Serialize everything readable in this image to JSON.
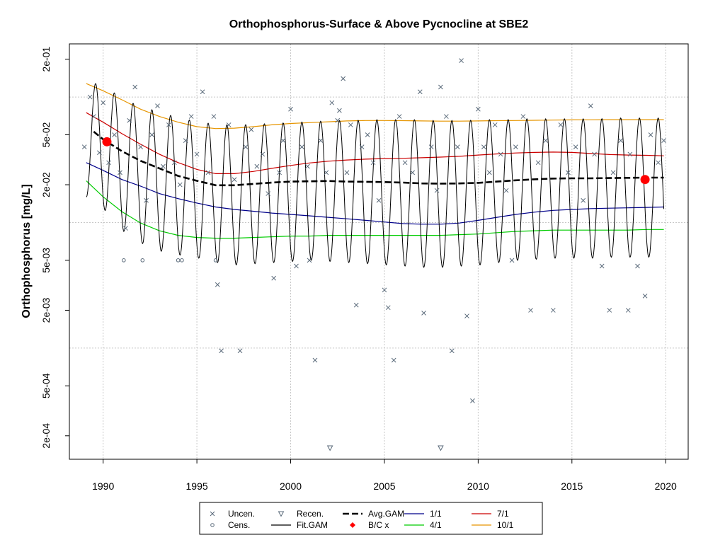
{
  "chart_data": {
    "type": "line",
    "title": "Orthophosphorus-Surface & Above Pycnocline at SBE2",
    "xlabel": "",
    "ylabel": "Orthophosphorus [mg/L]",
    "y_scale": "log",
    "xlim": [
      1988.2,
      2021.2
    ],
    "ylim": [
      0.00013,
      0.265
    ],
    "x_ticks": [
      1990,
      1995,
      2000,
      2005,
      2010,
      2015,
      2020
    ],
    "x_tick_labels": [
      "1990",
      "1995",
      "2000",
      "2005",
      "2010",
      "2015",
      "2020"
    ],
    "y_ticks": [
      0.0002,
      0.0005,
      0.002,
      0.005,
      0.02,
      0.05,
      0.2
    ],
    "y_tick_labels": [
      "2e-04",
      "5e-04",
      "2e-03",
      "5e-03",
      "2e-02",
      "5e-02",
      "2e-01"
    ],
    "grid_y": [
      0.001,
      0.01,
      0.1
    ],
    "grid_x": [
      1990,
      1995,
      2000,
      2005,
      2010,
      2015,
      2020
    ],
    "grid": true,
    "legend_position": "bottom",
    "legend": [
      {
        "label": "Uncen.",
        "symbol": "x-mark",
        "color": "#5a6a7a"
      },
      {
        "label": "Recen.",
        "symbol": "down-triangle",
        "color": "#5a6a7a"
      },
      {
        "label": "Avg.GAM",
        "symbol": "dashed-line",
        "color": "#000000"
      },
      {
        "label": "1/1",
        "symbol": "line",
        "color": "#00008b"
      },
      {
        "label": "7/1",
        "symbol": "line",
        "color": "#cc0000"
      },
      {
        "label": "Cens.",
        "symbol": "open-circle",
        "color": "#5a6a7a"
      },
      {
        "label": "Fit.GAM",
        "symbol": "line",
        "color": "#000000"
      },
      {
        "label": "B/C x",
        "symbol": "diamond",
        "color": "#ff0000"
      },
      {
        "label": "4/1",
        "symbol": "line",
        "color": "#00cc00"
      },
      {
        "label": "10/1",
        "symbol": "line",
        "color": "#e69500"
      }
    ],
    "series": [
      {
        "name": "1/1",
        "color": "#00008b",
        "style": "line",
        "x": [
          1989.1,
          1990,
          1991,
          1992,
          1993,
          1994,
          1995,
          1996,
          1997,
          1998,
          1999,
          2000,
          2001,
          2002,
          2003,
          2004,
          2005,
          2006,
          2007,
          2008,
          2009,
          2010,
          2011,
          2012,
          2013,
          2014,
          2015,
          2016,
          2017,
          2018,
          2019,
          2019.9
        ],
        "y": [
          0.03,
          0.026,
          0.022,
          0.0195,
          0.017,
          0.0155,
          0.0143,
          0.0133,
          0.0127,
          0.0123,
          0.0119,
          0.0116,
          0.0113,
          0.011,
          0.0107,
          0.0104,
          0.0101,
          0.0098,
          0.0097,
          0.0097,
          0.0099,
          0.0104,
          0.011,
          0.0116,
          0.0121,
          0.0125,
          0.0127,
          0.0129,
          0.013,
          0.0131,
          0.0132,
          0.0133
        ]
      },
      {
        "name": "4/1",
        "color": "#00cc00",
        "style": "line",
        "x": [
          1989.1,
          1990,
          1991,
          1992,
          1993,
          1994,
          1995,
          1996,
          1997,
          1998,
          1999,
          2000,
          2001,
          2002,
          2003,
          2004,
          2005,
          2006,
          2007,
          2008,
          2009,
          2010,
          2011,
          2012,
          2013,
          2014,
          2015,
          2016,
          2017,
          2018,
          2019,
          2019.9
        ],
        "y": [
          0.0215,
          0.016,
          0.0122,
          0.0099,
          0.0086,
          0.0079,
          0.0076,
          0.0075,
          0.0075,
          0.0076,
          0.0077,
          0.0078,
          0.0078,
          0.0079,
          0.0079,
          0.0079,
          0.0079,
          0.0079,
          0.0079,
          0.0079,
          0.008,
          0.0081,
          0.0083,
          0.0085,
          0.0086,
          0.0087,
          0.0087,
          0.0087,
          0.0087,
          0.0087,
          0.0088,
          0.0088
        ]
      },
      {
        "name": "7/1",
        "color": "#cc0000",
        "style": "line",
        "x": [
          1989.1,
          1990,
          1991,
          1992,
          1993,
          1994,
          1995,
          1996,
          1997,
          1998,
          1999,
          2000,
          2001,
          2002,
          2003,
          2004,
          2005,
          2006,
          2007,
          2008,
          2009,
          2010,
          2011,
          2012,
          2013,
          2014,
          2015,
          2016,
          2017,
          2018,
          2019,
          2019.9
        ],
        "y": [
          0.075,
          0.063,
          0.051,
          0.042,
          0.035,
          0.03,
          0.0265,
          0.0245,
          0.0245,
          0.0255,
          0.027,
          0.0285,
          0.0298,
          0.0308,
          0.0315,
          0.032,
          0.0323,
          0.0325,
          0.0328,
          0.0332,
          0.0337,
          0.0345,
          0.0352,
          0.0358,
          0.0362,
          0.0364,
          0.0362,
          0.0355,
          0.0348,
          0.0345,
          0.0343,
          0.034
        ]
      },
      {
        "name": "10/1",
        "color": "#e69500",
        "style": "line",
        "x": [
          1989.1,
          1990,
          1991,
          1992,
          1993,
          1994,
          1995,
          1996,
          1997,
          1998,
          1999,
          2000,
          2001,
          2002,
          2003,
          2004,
          2005,
          2006,
          2007,
          2008,
          2009,
          2010,
          2011,
          2012,
          2013,
          2014,
          2015,
          2016,
          2017,
          2018,
          2019,
          2019.9
        ],
        "y": [
          0.128,
          0.112,
          0.095,
          0.08,
          0.07,
          0.063,
          0.058,
          0.056,
          0.0565,
          0.058,
          0.06,
          0.0615,
          0.0625,
          0.0635,
          0.0645,
          0.065,
          0.065,
          0.0648,
          0.0645,
          0.0642,
          0.0642,
          0.0645,
          0.0648,
          0.065,
          0.0652,
          0.0655,
          0.0657,
          0.0658,
          0.066,
          0.066,
          0.066,
          0.066
        ]
      },
      {
        "name": "Avg.GAM",
        "color": "#000000",
        "style": "dashed",
        "x": [
          1989.5,
          1990,
          1991,
          1992,
          1993,
          1994,
          1995,
          1996,
          1997,
          1998,
          1999,
          2000,
          2001,
          2002,
          2003,
          2004,
          2005,
          2006,
          2007,
          2008,
          2009,
          2010,
          2011,
          2012,
          2013,
          2014,
          2015,
          2016,
          2017,
          2018,
          2019,
          2019.9
        ],
        "y": [
          0.053,
          0.046,
          0.037,
          0.031,
          0.027,
          0.0235,
          0.0215,
          0.0198,
          0.0198,
          0.0203,
          0.0208,
          0.0212,
          0.0213,
          0.0214,
          0.0212,
          0.0211,
          0.021,
          0.0208,
          0.0205,
          0.0204,
          0.0205,
          0.0207,
          0.0212,
          0.0217,
          0.0221,
          0.0224,
          0.0225,
          0.0225,
          0.0226,
          0.0227,
          0.0228,
          0.0228
        ]
      },
      {
        "name": "Fit.GAM",
        "color": "#000000",
        "style": "line",
        "seasonal_peaks_x": [
          1989.5,
          1990.5,
          1991.5,
          1992.5,
          1993.5,
          1994.5,
          1995.5,
          1996.5,
          1997.5,
          1998.5,
          1999.5,
          2000.5,
          2001.5,
          2002.5,
          2003.5,
          2004.5,
          2005.5,
          2006.5,
          2007.5,
          2008.5,
          2009.5,
          2010.5,
          2011.5,
          2012.5,
          2013.5,
          2014.5,
          2015.5,
          2016.5,
          2017.5,
          2018.5,
          2019.5
        ],
        "seasonal_peaks_y": [
          0.13,
          0.11,
          0.09,
          0.08,
          0.072,
          0.066,
          0.062,
          0.06,
          0.06,
          0.061,
          0.062,
          0.063,
          0.064,
          0.065,
          0.065,
          0.066,
          0.066,
          0.066,
          0.065,
          0.065,
          0.065,
          0.066,
          0.066,
          0.067,
          0.067,
          0.067,
          0.067,
          0.067,
          0.068,
          0.068,
          0.068
        ],
        "seasonal_troughs_x": [
          1989.1,
          1990.1,
          1991.1,
          1992.1,
          1993.1,
          1994.1,
          1995.1,
          1996.1,
          1997.1,
          1998.1,
          1999.1,
          2000.1,
          2001.1,
          2002.1,
          2003.1,
          2004.1,
          2005.1,
          2006.1,
          2007.1,
          2008.1,
          2009.1,
          2010.1,
          2011.1,
          2012.1,
          2013.1,
          2014.1,
          2015.1,
          2016.1,
          2017.1,
          2018.1,
          2019.1
        ],
        "seasonal_troughs_y": [
          0.016,
          0.0125,
          0.0085,
          0.0068,
          0.0059,
          0.0055,
          0.0052,
          0.0048,
          0.0046,
          0.0047,
          0.0048,
          0.0049,
          0.005,
          0.0049,
          0.0048,
          0.0047,
          0.0046,
          0.0045,
          0.0044,
          0.0044,
          0.0045,
          0.0046,
          0.0048,
          0.005,
          0.0051,
          0.0052,
          0.0052,
          0.0052,
          0.0053,
          0.0053,
          0.0053
        ]
      },
      {
        "name": "B/C x",
        "color": "#ff0000",
        "style": "points",
        "x": [
          1990.2,
          2018.9
        ],
        "y": [
          0.044,
          0.022
        ]
      },
      {
        "name": "Uncen.",
        "color": "#5a6a7a",
        "style": "x-points",
        "x": [
          1989.0,
          1989.3,
          1989.5,
          1989.8,
          1990.0,
          1990.3,
          1990.6,
          1990.9,
          1991.2,
          1991.4,
          1991.7,
          1992.0,
          1992.3,
          1992.6,
          1992.9,
          1993.2,
          1993.5,
          1993.8,
          1994.1,
          1994.4,
          1994.7,
          1995.0,
          1995.3,
          1995.6,
          1995.9,
          1996.1,
          1996.3,
          1996.7,
          1997.0,
          1997.3,
          1997.6,
          1997.9,
          1998.2,
          1998.5,
          1998.8,
          1999.1,
          1999.4,
          1999.6,
          2000.0,
          2000.3,
          2000.6,
          2000.9,
          2001.0,
          2001.3,
          2001.6,
          2001.9,
          2002.2,
          2002.5,
          2002.6,
          2002.8,
          2003.0,
          2003.2,
          2003.5,
          2003.8,
          2004.1,
          2004.4,
          2004.7,
          2005.0,
          2005.2,
          2005.5,
          2005.8,
          2006.1,
          2006.5,
          2006.9,
          2007.1,
          2007.5,
          2007.8,
          2008.0,
          2008.3,
          2008.6,
          2008.9,
          2009.1,
          2009.4,
          2009.7,
          2010.0,
          2010.3,
          2010.6,
          2010.9,
          2011.2,
          2011.5,
          2011.8,
          2012.0,
          2012.4,
          2012.8,
          2013.2,
          2013.6,
          2014.0,
          2014.4,
          2014.8,
          2015.2,
          2015.6,
          2016.0,
          2016.2,
          2016.6,
          2017.0,
          2017.2,
          2017.6,
          2018.0,
          2018.1,
          2018.5,
          2018.9,
          2019.2,
          2019.6,
          2019.9
        ],
        "y": [
          0.04,
          0.1,
          0.07,
          0.036,
          0.09,
          0.03,
          0.05,
          0.025,
          0.009,
          0.065,
          0.12,
          0.04,
          0.015,
          0.05,
          0.085,
          0.028,
          0.06,
          0.03,
          0.02,
          0.045,
          0.07,
          0.035,
          0.11,
          0.025,
          0.07,
          0.0032,
          0.00095,
          0.06,
          0.022,
          0.00095,
          0.04,
          0.055,
          0.028,
          0.035,
          0.017,
          0.0036,
          0.025,
          0.045,
          0.08,
          0.0045,
          0.04,
          0.028,
          0.005,
          0.0008,
          0.045,
          0.025,
          0.09,
          0.065,
          0.078,
          0.14,
          0.025,
          0.06,
          0.0022,
          0.04,
          0.05,
          0.03,
          0.015,
          0.0029,
          0.0021,
          0.0008,
          0.07,
          0.03,
          0.025,
          0.11,
          0.0019,
          0.04,
          0.018,
          0.12,
          0.07,
          0.00095,
          0.04,
          0.195,
          0.0018,
          0.00038,
          0.08,
          0.04,
          0.025,
          0.06,
          0.035,
          0.018,
          0.005,
          0.04,
          0.07,
          0.002,
          0.03,
          0.045,
          0.002,
          0.06,
          0.025,
          0.04,
          0.015,
          0.085,
          0.035,
          0.0045,
          0.002,
          0.025,
          0.045,
          0.002,
          0.035,
          0.0045,
          0.0026,
          0.05,
          0.03,
          0.045
        ]
      },
      {
        "name": "Cens.",
        "color": "#5a6a7a",
        "style": "circle-points",
        "x": [
          1991.1,
          1992.1,
          1994.0,
          1994.2,
          1996.0
        ],
        "y": [
          0.005,
          0.005,
          0.005,
          0.005,
          0.005
        ]
      },
      {
        "name": "Recen.",
        "color": "#5a6a7a",
        "style": "triangle-points",
        "x": [
          2002.1,
          2008.0
        ],
        "y": [
          0.00016,
          0.00016
        ]
      }
    ]
  }
}
